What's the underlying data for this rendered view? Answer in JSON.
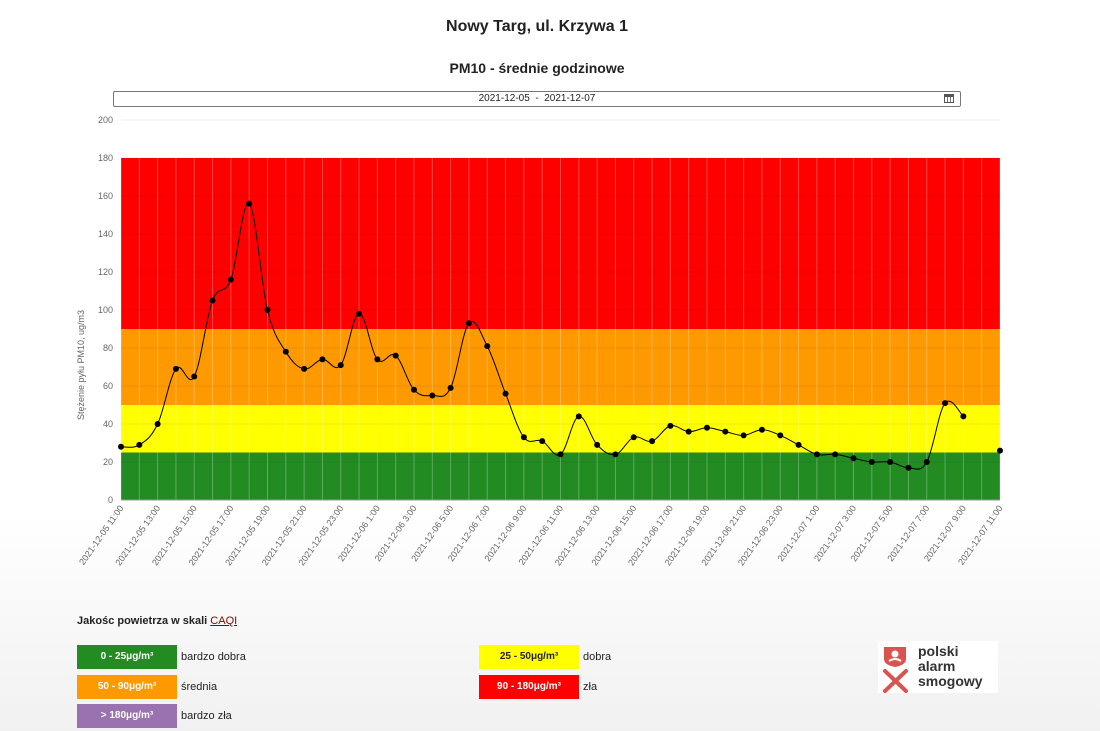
{
  "title": "Nowy Targ, ul. Krzywa 1",
  "subtitle": "PM10 - średnie godzinowe",
  "date_range": "2021-12-05  -  2021-12-07",
  "chart_data": {
    "type": "line",
    "ylabel": "Stężenie pyłu PM10, ug/m3",
    "ylim": [
      0,
      200
    ],
    "y_ticks": [
      0,
      20,
      40,
      60,
      80,
      100,
      120,
      140,
      160,
      180,
      200
    ],
    "x": [
      "2021-12-05 11:00",
      "2021-12-05 12:00",
      "2021-12-05 13:00",
      "2021-12-05 14:00",
      "2021-12-05 15:00",
      "2021-12-05 16:00",
      "2021-12-05 17:00",
      "2021-12-05 18:00",
      "2021-12-05 19:00",
      "2021-12-05 20:00",
      "2021-12-05 21:00",
      "2021-12-05 22:00",
      "2021-12-05 23:00",
      "2021-12-06 0:00",
      "2021-12-06 1:00",
      "2021-12-06 2:00",
      "2021-12-06 3:00",
      "2021-12-06 4:00",
      "2021-12-06 5:00",
      "2021-12-06 6:00",
      "2021-12-06 7:00",
      "2021-12-06 8:00",
      "2021-12-06 9:00",
      "2021-12-06 10:00",
      "2021-12-06 11:00",
      "2021-12-06 12:00",
      "2021-12-06 13:00",
      "2021-12-06 14:00",
      "2021-12-06 15:00",
      "2021-12-06 16:00",
      "2021-12-06 17:00",
      "2021-12-06 18:00",
      "2021-12-06 19:00",
      "2021-12-06 20:00",
      "2021-12-06 21:00",
      "2021-12-06 22:00",
      "2021-12-06 23:00",
      "2021-12-07 0:00",
      "2021-12-07 1:00",
      "2021-12-07 2:00",
      "2021-12-07 3:00",
      "2021-12-07 4:00",
      "2021-12-07 5:00",
      "2021-12-07 6:00",
      "2021-12-07 7:00",
      "2021-12-07 8:00",
      "2021-12-07 9:00",
      "2021-12-07 10:00",
      "2021-12-07 11:00"
    ],
    "x_tick_labels": [
      "2021-12-05 11:00",
      "2021-12-05 13:00",
      "2021-12-05 15:00",
      "2021-12-05 17:00",
      "2021-12-05 19:00",
      "2021-12-05 21:00",
      "2021-12-05 23:00",
      "2021-12-06 1:00",
      "2021-12-06 3:00",
      "2021-12-06 5:00",
      "2021-12-06 7:00",
      "2021-12-06 9:00",
      "2021-12-06 11:00",
      "2021-12-06 13:00",
      "2021-12-06 15:00",
      "2021-12-06 17:00",
      "2021-12-06 19:00",
      "2021-12-06 21:00",
      "2021-12-06 23:00",
      "2021-12-07 1:00",
      "2021-12-07 3:00",
      "2021-12-07 5:00",
      "2021-12-07 7:00",
      "2021-12-07 9:00",
      "2021-12-07 11:00"
    ],
    "values": [
      28,
      29,
      40,
      69,
      65,
      105,
      116,
      156,
      100,
      78,
      69,
      74,
      71,
      98,
      74,
      76,
      58,
      55,
      59,
      93,
      81,
      56,
      33,
      31,
      24,
      44,
      29,
      24,
      33,
      31,
      39,
      36,
      38,
      36,
      34,
      37,
      34,
      29,
      24,
      24,
      22,
      20,
      20,
      17,
      20,
      51,
      44,
      null,
      26
    ],
    "bands": [
      {
        "from": 0,
        "to": 25,
        "color": "#228b22"
      },
      {
        "from": 25,
        "to": 50,
        "color": "#ffff00"
      },
      {
        "from": 50,
        "to": 90,
        "color": "#ff9900"
      },
      {
        "from": 90,
        "to": 180,
        "color": "#ff0000"
      }
    ],
    "line_color": "#000000",
    "grid": true
  },
  "legend": {
    "title": "Jakośc powietrza w skali",
    "link": "CAQI",
    "items": [
      {
        "range": "0 - 25μg/m³",
        "label": "bardzo dobra",
        "color": "#228b22",
        "text_color": "#ffffff"
      },
      {
        "range": "25 - 50μg/m³",
        "label": "dobra",
        "color": "#ffff00",
        "text_color": "#222222"
      },
      {
        "range": "50 - 90μg/m³",
        "label": "średnia",
        "color": "#ff9900",
        "text_color": "#ffffff"
      },
      {
        "range": "90 - 180μg/m³",
        "label": "zła",
        "color": "#ff0000",
        "text_color": "#ffffff"
      },
      {
        "range": "> 180μg/m³",
        "label": "bardzo zła",
        "color": "#9b72b0",
        "text_color": "#ffffff"
      }
    ]
  },
  "logo": {
    "line1": "polski",
    "line2": "alarm",
    "line3": "smogowy",
    "icon": "smog-mask-icon",
    "color": "#d9534f"
  }
}
